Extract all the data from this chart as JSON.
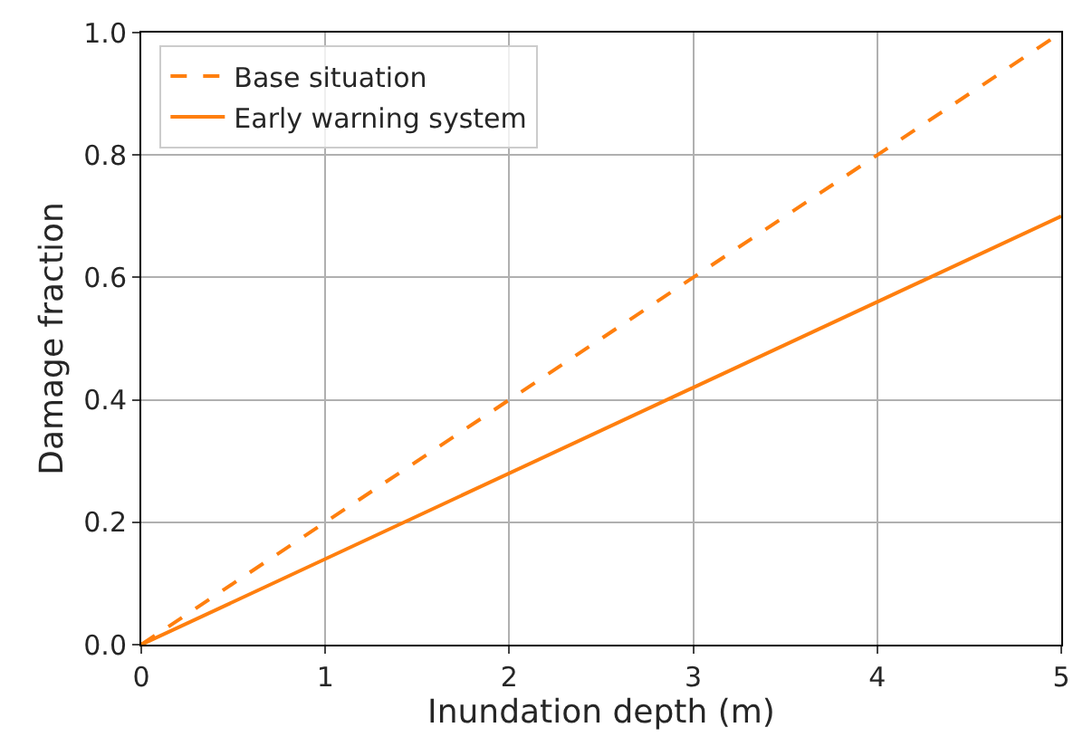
{
  "chart_data": {
    "type": "line",
    "xlabel": "Inundation depth (m)",
    "ylabel": "Damage fraction",
    "x": [
      0,
      5
    ],
    "series": [
      {
        "name": "Base situation",
        "color": "#ff7f0e",
        "values": [
          0,
          1.0
        ],
        "line_style": "dashed"
      },
      {
        "name": "Early warning system",
        "color": "#ff7f0e",
        "values": [
          0,
          0.7
        ],
        "line_style": "solid"
      }
    ],
    "xlim": [
      0,
      5
    ],
    "xticks": [
      0,
      1,
      2,
      3,
      4,
      5
    ],
    "ylim": [
      0,
      1
    ],
    "yticks": [
      {
        "value": 0,
        "label": "0.0"
      },
      0.2,
      0.4,
      0.6,
      0.8,
      {
        "value": 1,
        "label": "1.0"
      }
    ],
    "grid": true,
    "legend": "top left"
  }
}
